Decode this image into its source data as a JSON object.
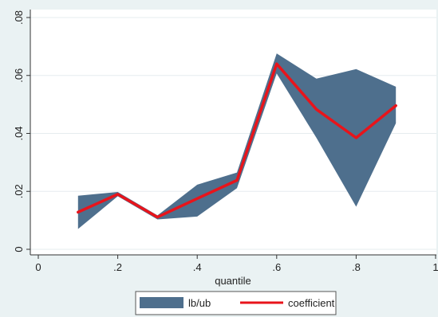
{
  "chart_data": {
    "type": "area",
    "xlabel": "quantile",
    "ylabel": "",
    "xlim": [
      0,
      1
    ],
    "ylim": [
      0,
      0.08
    ],
    "x_ticks": [
      {
        "value": 0,
        "label": "0"
      },
      {
        "value": 0.2,
        "label": ".2"
      },
      {
        "value": 0.4,
        "label": ".4"
      },
      {
        "value": 0.6,
        "label": ".6"
      },
      {
        "value": 0.8,
        "label": ".8"
      },
      {
        "value": 1,
        "label": "1"
      }
    ],
    "y_ticks": [
      {
        "value": 0,
        "label": "0"
      },
      {
        "value": 0.02,
        "label": ".02"
      },
      {
        "value": 0.04,
        "label": ".04"
      },
      {
        "value": 0.06,
        "label": ".06"
      },
      {
        "value": 0.08,
        "label": ".08"
      }
    ],
    "x": [
      0.1,
      0.2,
      0.3,
      0.4,
      0.5,
      0.6,
      0.7,
      0.8,
      0.9
    ],
    "series": [
      {
        "name": "lb/ub",
        "kind": "range",
        "color": "#4e6f8d",
        "lower": [
          0.007,
          0.0183,
          0.0103,
          0.0113,
          0.0211,
          0.0607,
          0.0385,
          0.0147,
          0.0435
        ],
        "upper": [
          0.0185,
          0.0198,
          0.0117,
          0.0223,
          0.0265,
          0.0676,
          0.0589,
          0.0622,
          0.0561
        ]
      },
      {
        "name": "coefficient",
        "kind": "line",
        "color": "#e8141b",
        "values": [
          0.0128,
          0.019,
          0.0111,
          0.0175,
          0.0238,
          0.064,
          0.0483,
          0.0385,
          0.0496
        ]
      }
    ],
    "grid": true,
    "legend": "bottom"
  }
}
